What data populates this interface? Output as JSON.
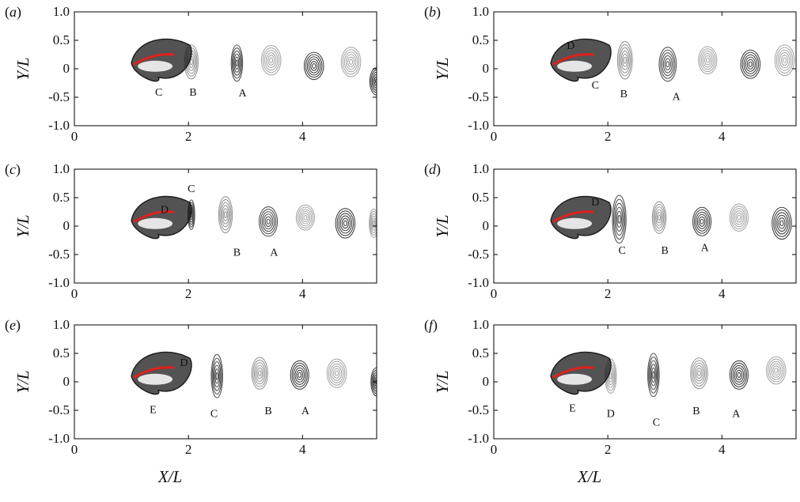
{
  "chart_data": [
    {
      "type": "contour",
      "panel_label": "(a)",
      "xlabel": "",
      "ylabel": "Y/L",
      "xlim": [
        0,
        5.3
      ],
      "ylim": [
        -1.0,
        1.0
      ],
      "xticks": [
        "0",
        "2",
        "4"
      ],
      "yticks": [
        "1.0",
        "0.5",
        "0",
        "-0.5",
        "-1.0"
      ],
      "vortices": [
        {
          "label": "A",
          "x": 2.85,
          "y": 0.1,
          "rx": 0.1,
          "ry": 0.32,
          "tone": "#555"
        },
        {
          "label": "B",
          "x": 2.05,
          "y": 0.12,
          "rx": 0.12,
          "ry": 0.3,
          "tone": "#999"
        },
        {
          "label": "",
          "x": 3.45,
          "y": 0.15,
          "rx": 0.17,
          "ry": 0.26,
          "tone": "#aaa"
        },
        {
          "label": "",
          "x": 4.2,
          "y": 0.05,
          "rx": 0.17,
          "ry": 0.24,
          "tone": "#444"
        },
        {
          "label": "",
          "x": 4.85,
          "y": 0.12,
          "rx": 0.17,
          "ry": 0.26,
          "tone": "#aaa"
        },
        {
          "label": "",
          "x": 5.3,
          "y": -0.22,
          "rx": 0.12,
          "ry": 0.24,
          "tone": "#444"
        }
      ],
      "annotations": [
        {
          "text": "C",
          "x": 1.48,
          "y": -0.4
        },
        {
          "text": "B",
          "x": 2.08,
          "y": -0.4
        },
        {
          "text": "A",
          "x": 2.95,
          "y": -0.42
        }
      ]
    },
    {
      "type": "contour",
      "panel_label": "(b)",
      "xlabel": "",
      "ylabel": "Y/L",
      "xlim": [
        0,
        5.3
      ],
      "ylim": [
        -1.0,
        1.0
      ],
      "xticks": [
        "0",
        "2",
        "4"
      ],
      "yticks": [
        "1.0",
        "0.5",
        "0",
        "-0.5",
        "-1.0"
      ],
      "vortices": [
        {
          "label": "B",
          "x": 2.3,
          "y": 0.15,
          "rx": 0.13,
          "ry": 0.33,
          "tone": "#999"
        },
        {
          "label": "A",
          "x": 3.05,
          "y": 0.08,
          "rx": 0.15,
          "ry": 0.3,
          "tone": "#555"
        },
        {
          "label": "",
          "x": 3.75,
          "y": 0.15,
          "rx": 0.16,
          "ry": 0.24,
          "tone": "#aaa"
        },
        {
          "label": "",
          "x": 4.5,
          "y": 0.08,
          "rx": 0.17,
          "ry": 0.25,
          "tone": "#444"
        },
        {
          "label": "",
          "x": 5.1,
          "y": 0.15,
          "rx": 0.17,
          "ry": 0.27,
          "tone": "#aaa"
        }
      ],
      "annotations": [
        {
          "text": "D",
          "x": 1.35,
          "y": 0.42
        },
        {
          "text": "C",
          "x": 1.78,
          "y": -0.28
        },
        {
          "text": "B",
          "x": 2.28,
          "y": -0.43
        },
        {
          "text": "A",
          "x": 3.2,
          "y": -0.48
        }
      ]
    },
    {
      "type": "contour",
      "panel_label": "(c)",
      "xlabel": "",
      "ylabel": "Y/L",
      "xlim": [
        0,
        5.3
      ],
      "ylim": [
        -1.0,
        1.0
      ],
      "xticks": [
        "0",
        "2",
        "4"
      ],
      "yticks": [
        "1.0",
        "0.5",
        "0",
        "-0.5",
        "-1.0"
      ],
      "vortices": [
        {
          "label": "",
          "x": 2.05,
          "y": 0.2,
          "rx": 0.06,
          "ry": 0.26,
          "tone": "#555"
        },
        {
          "label": "B",
          "x": 2.65,
          "y": 0.2,
          "rx": 0.12,
          "ry": 0.32,
          "tone": "#999"
        },
        {
          "label": "A",
          "x": 3.4,
          "y": 0.08,
          "rx": 0.16,
          "ry": 0.26,
          "tone": "#555"
        },
        {
          "label": "",
          "x": 4.05,
          "y": 0.15,
          "rx": 0.16,
          "ry": 0.22,
          "tone": "#aaa"
        },
        {
          "label": "",
          "x": 4.75,
          "y": 0.05,
          "rx": 0.17,
          "ry": 0.26,
          "tone": "#444"
        },
        {
          "label": "",
          "x": 5.25,
          "y": 0.05,
          "rx": 0.08,
          "ry": 0.25,
          "tone": "#aaa"
        }
      ],
      "annotations": [
        {
          "text": "C",
          "x": 2.05,
          "y": 0.67
        },
        {
          "text": "D",
          "x": 1.58,
          "y": 0.3
        },
        {
          "text": "B",
          "x": 2.85,
          "y": -0.45
        },
        {
          "text": "A",
          "x": 3.5,
          "y": -0.45
        }
      ]
    },
    {
      "type": "contour",
      "panel_label": "(d)",
      "xlabel": "",
      "ylabel": "Y/L",
      "xlim": [
        0,
        5.3
      ],
      "ylim": [
        -1.0,
        1.0
      ],
      "xticks": [
        "0",
        "2",
        "4"
      ],
      "yticks": [
        "1.0",
        "0.5",
        "0",
        "-0.5",
        "-1.0"
      ],
      "vortices": [
        {
          "label": "",
          "x": 2.2,
          "y": 0.12,
          "rx": 0.12,
          "ry": 0.42,
          "tone": "#555"
        },
        {
          "label": "B",
          "x": 2.9,
          "y": 0.15,
          "rx": 0.12,
          "ry": 0.28,
          "tone": "#999"
        },
        {
          "label": "A",
          "x": 3.65,
          "y": 0.08,
          "rx": 0.16,
          "ry": 0.25,
          "tone": "#444"
        },
        {
          "label": "",
          "x": 4.3,
          "y": 0.15,
          "rx": 0.16,
          "ry": 0.24,
          "tone": "#aaa"
        },
        {
          "label": "",
          "x": 5.05,
          "y": 0.05,
          "rx": 0.17,
          "ry": 0.28,
          "tone": "#444"
        }
      ],
      "annotations": [
        {
          "text": "D",
          "x": 1.78,
          "y": 0.43
        },
        {
          "text": "C",
          "x": 2.25,
          "y": -0.42
        },
        {
          "text": "B",
          "x": 3.0,
          "y": -0.42
        },
        {
          "text": "A",
          "x": 3.7,
          "y": -0.37
        }
      ]
    },
    {
      "type": "contour",
      "panel_label": "(e)",
      "xlabel": "X/L",
      "ylabel": "Y/L",
      "xlim": [
        0,
        5.3
      ],
      "ylim": [
        -1.0,
        1.0
      ],
      "xticks": [
        "0",
        "2",
        "4"
      ],
      "yticks": [
        "1.0",
        "0.5",
        "0",
        "-0.5",
        "-1.0"
      ],
      "vortices": [
        {
          "label": "C",
          "x": 2.5,
          "y": 0.1,
          "rx": 0.1,
          "ry": 0.38,
          "tone": "#555"
        },
        {
          "label": "B",
          "x": 3.25,
          "y": 0.15,
          "rx": 0.14,
          "ry": 0.28,
          "tone": "#999"
        },
        {
          "label": "A",
          "x": 3.95,
          "y": 0.12,
          "rx": 0.16,
          "ry": 0.25,
          "tone": "#444"
        },
        {
          "label": "",
          "x": 4.6,
          "y": 0.15,
          "rx": 0.17,
          "ry": 0.25,
          "tone": "#aaa"
        },
        {
          "label": "",
          "x": 5.3,
          "y": 0.0,
          "rx": 0.1,
          "ry": 0.25,
          "tone": "#444"
        }
      ],
      "annotations": [
        {
          "text": "D",
          "x": 1.92,
          "y": 0.35
        },
        {
          "text": "E",
          "x": 1.38,
          "y": -0.48
        },
        {
          "text": "C",
          "x": 2.45,
          "y": -0.55
        },
        {
          "text": "B",
          "x": 3.4,
          "y": -0.5
        },
        {
          "text": "A",
          "x": 4.05,
          "y": -0.5
        }
      ]
    },
    {
      "type": "contour",
      "panel_label": "(f)",
      "xlabel": "X/L",
      "ylabel": "Y/L",
      "xlim": [
        0,
        5.3
      ],
      "ylim": [
        -1.0,
        1.0
      ],
      "xticks": [
        "0",
        "2",
        "4"
      ],
      "yticks": [
        "1.0",
        "0.5",
        "0",
        "-0.5",
        "-1.0"
      ],
      "vortices": [
        {
          "label": "",
          "x": 2.05,
          "y": 0.1,
          "rx": 0.1,
          "ry": 0.3,
          "tone": "#aaa"
        },
        {
          "label": "C",
          "x": 2.8,
          "y": 0.12,
          "rx": 0.1,
          "ry": 0.38,
          "tone": "#555"
        },
        {
          "label": "B",
          "x": 3.6,
          "y": 0.15,
          "rx": 0.15,
          "ry": 0.27,
          "tone": "#999"
        },
        {
          "label": "A",
          "x": 4.3,
          "y": 0.12,
          "rx": 0.16,
          "ry": 0.25,
          "tone": "#444"
        },
        {
          "label": "",
          "x": 4.95,
          "y": 0.2,
          "rx": 0.17,
          "ry": 0.24,
          "tone": "#aaa"
        }
      ],
      "annotations": [
        {
          "text": "E",
          "x": 1.38,
          "y": -0.45
        },
        {
          "text": "D",
          "x": 2.05,
          "y": -0.55
        },
        {
          "text": "C",
          "x": 2.85,
          "y": -0.7
        },
        {
          "text": "B",
          "x": 3.55,
          "y": -0.5
        },
        {
          "text": "A",
          "x": 4.25,
          "y": -0.55
        }
      ]
    }
  ],
  "colors": {
    "flapper": "#e0201a",
    "wake_dark": "#1a1a1a"
  }
}
